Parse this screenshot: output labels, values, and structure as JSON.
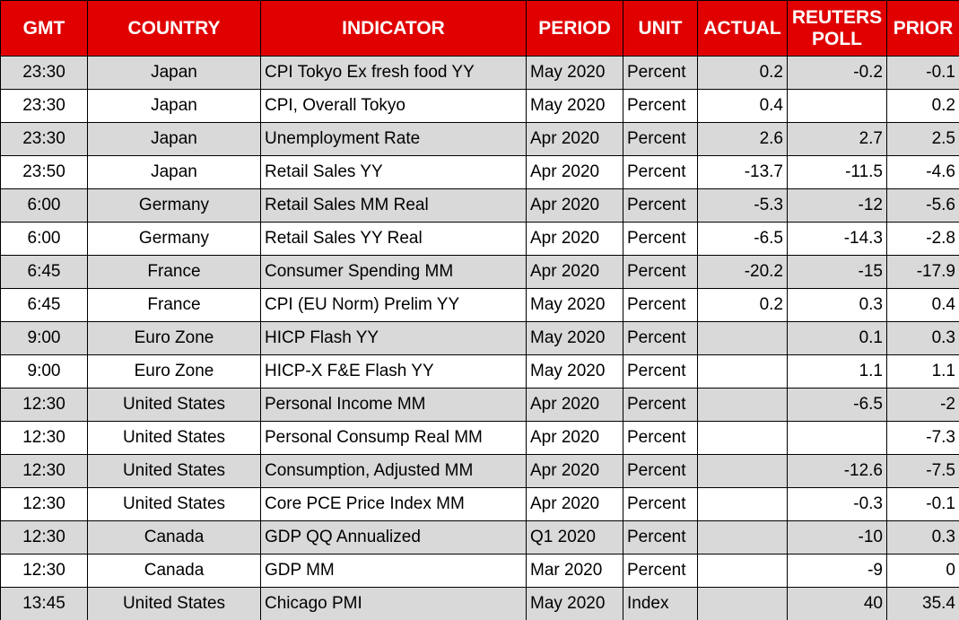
{
  "table": {
    "header": [
      "GMT",
      "COUNTRY",
      "INDICATOR",
      "PERIOD",
      "UNIT",
      "ACTUAL",
      "REUTERS POLL",
      "PRIOR"
    ],
    "rows": [
      [
        "23:30",
        "Japan",
        "CPI Tokyo Ex fresh food YY",
        "May 2020",
        "Percent",
        0.2,
        -0.2,
        -0.1
      ],
      [
        "23:30",
        "Japan",
        "CPI, Overall Tokyo",
        "May 2020",
        "Percent",
        0.4,
        null,
        0.2
      ],
      [
        "23:30",
        "Japan",
        "Unemployment Rate",
        "Apr 2020",
        "Percent",
        2.6,
        2.7,
        2.5
      ],
      [
        "23:50",
        "Japan",
        "Retail Sales YY",
        "Apr 2020",
        "Percent",
        -13.7,
        -11.5,
        -4.6
      ],
      [
        "6:00",
        "Germany",
        "Retail Sales MM Real",
        "Apr 2020",
        "Percent",
        -5.3,
        -12,
        -5.6
      ],
      [
        "6:00",
        "Germany",
        "Retail Sales YY Real",
        "Apr 2020",
        "Percent",
        -6.5,
        -14.3,
        -2.8
      ],
      [
        "6:45",
        "France",
        "Consumer Spending MM",
        "Apr 2020",
        "Percent",
        -20.2,
        -15,
        -17.9
      ],
      [
        "6:45",
        "France",
        "CPI (EU Norm) Prelim YY",
        "May 2020",
        "Percent",
        0.2,
        0.3,
        0.4
      ],
      [
        "9:00",
        "Euro Zone",
        "HICP Flash YY",
        "May 2020",
        "Percent",
        null,
        0.1,
        0.3
      ],
      [
        "9:00",
        "Euro Zone",
        "HICP-X F&E Flash YY",
        "May 2020",
        "Percent",
        null,
        1.1,
        1.1
      ],
      [
        "12:30",
        "United States",
        "Personal Income MM",
        "Apr 2020",
        "Percent",
        null,
        -6.5,
        -2
      ],
      [
        "12:30",
        "United States",
        "Personal Consump Real MM",
        "Apr 2020",
        "Percent",
        null,
        null,
        -7.3
      ],
      [
        "12:30",
        "United States",
        "Consumption, Adjusted MM",
        "Apr 2020",
        "Percent",
        null,
        -12.6,
        -7.5
      ],
      [
        "12:30",
        "United States",
        "Core PCE Price Index MM",
        "Apr 2020",
        "Percent",
        null,
        -0.3,
        -0.1
      ],
      [
        "12:30",
        "Canada",
        "GDP QQ Annualized",
        "Q1 2020",
        "Percent",
        null,
        -10,
        0.3
      ],
      [
        "12:30",
        "Canada",
        "GDP MM",
        "Mar 2020",
        "Percent",
        null,
        -9,
        0
      ],
      [
        "13:45",
        "United States",
        "Chicago PMI",
        "May 2020",
        "Index",
        null,
        40,
        35.4
      ]
    ]
  }
}
